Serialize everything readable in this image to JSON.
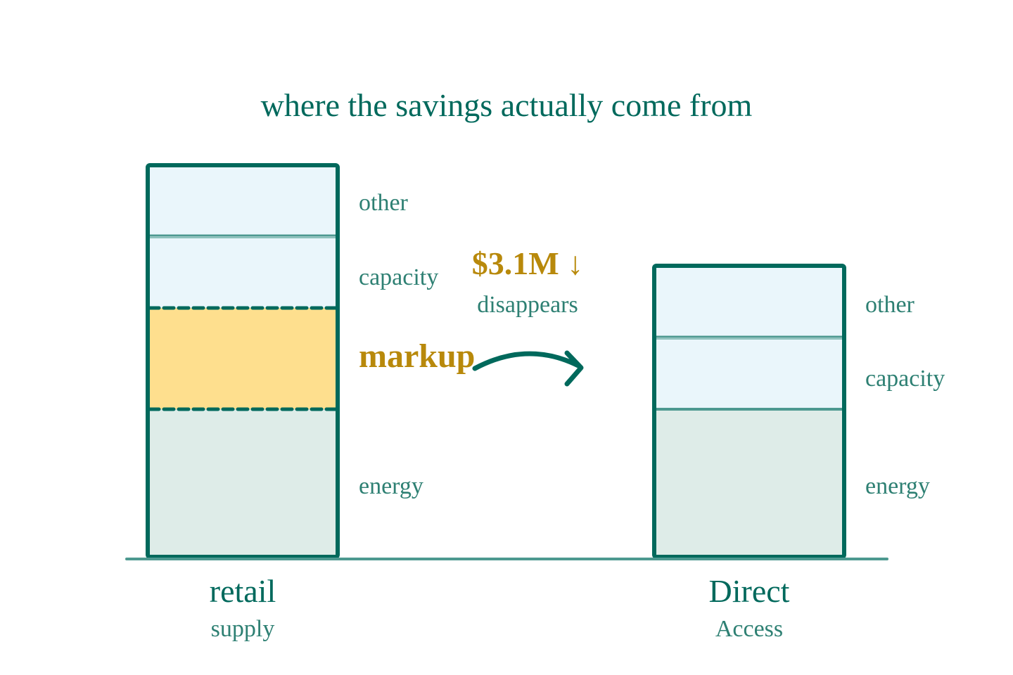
{
  "title": "where the savings actually come from",
  "colors": {
    "outline": "#00695c",
    "divider": "#4d9990",
    "light_divider": "#8cc1bb",
    "segment_other": "#eaf6fb",
    "segment_capacity": "#eaf6fb",
    "segment_markup": "#fedf8e",
    "segment_energy": "#deece8",
    "label_text": "#2e8073",
    "accent_gold": "#b8890b"
  },
  "bars": {
    "retail": {
      "name": "retail",
      "subname": "supply",
      "segments": {
        "other": "other",
        "capacity": "capacity",
        "markup": "markup",
        "energy": "energy"
      }
    },
    "direct": {
      "name": "Direct",
      "subname": "Access",
      "segments": {
        "other": "other",
        "capacity": "capacity",
        "energy": "energy"
      }
    }
  },
  "savings": {
    "amount": "$3.1M ↓",
    "caption": "disappears"
  }
}
